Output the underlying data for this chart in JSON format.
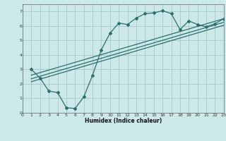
{
  "xlabel": "Humidex (Indice chaleur)",
  "bg_color": "#cce8e8",
  "line_color": "#2d6e6e",
  "grid_color": "#aacccc",
  "xlim": [
    0,
    23
  ],
  "ylim": [
    0,
    7.5
  ],
  "xticks": [
    0,
    1,
    2,
    3,
    4,
    5,
    6,
    7,
    8,
    9,
    10,
    11,
    12,
    13,
    14,
    15,
    16,
    17,
    18,
    19,
    20,
    21,
    22,
    23
  ],
  "yticks": [
    0,
    1,
    2,
    3,
    4,
    5,
    6,
    7
  ],
  "curve1_x": [
    1,
    2,
    3,
    4,
    5,
    6,
    7,
    8,
    9,
    10,
    11,
    12,
    13,
    14,
    15,
    16,
    17,
    18,
    19,
    20,
    21,
    22,
    23
  ],
  "curve1_y": [
    3.0,
    2.4,
    1.5,
    1.4,
    0.35,
    0.3,
    1.1,
    2.6,
    4.35,
    5.5,
    6.2,
    6.1,
    6.55,
    6.85,
    6.9,
    7.05,
    6.85,
    5.75,
    6.35,
    6.1,
    5.95,
    6.15,
    6.5
  ],
  "line2_x": [
    1,
    23
  ],
  "line2_y": [
    2.6,
    6.5
  ],
  "line3_x": [
    1,
    23
  ],
  "line3_y": [
    2.35,
    6.25
  ],
  "line4_x": [
    1,
    23
  ],
  "line4_y": [
    2.15,
    6.05
  ]
}
